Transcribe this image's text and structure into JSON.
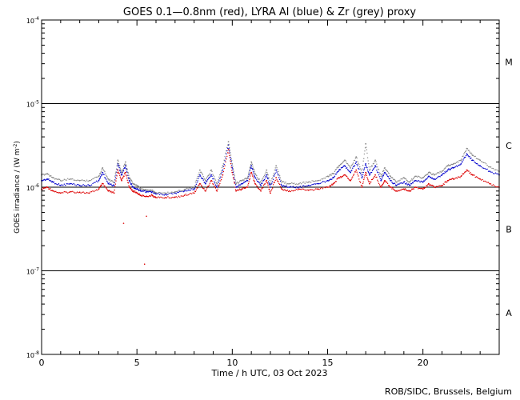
{
  "chart_data": {
    "type": "scatter",
    "title": "GOES 0.1—0.8nm (red), LYRA Al (blue) & Zr (grey) proxy",
    "xlabel": "Time / h UTC, 03 Oct 2023",
    "ylabel_prefix": "GOES irradiance / (W m",
    "ylabel_exp": "-2",
    "ylabel_suffix": ")",
    "credit": "ROB/SIDC, Brussels, Belgium",
    "x_range": [
      0,
      24
    ],
    "y_range": [
      1e-08,
      0.0001
    ],
    "y_scale": "log",
    "x_ticks": [
      0,
      5,
      10,
      15,
      20
    ],
    "x_tick_labels": [
      "0",
      "5",
      "10",
      "15",
      "20"
    ],
    "y_ticks": [
      {
        "base": "10",
        "exp": "-8"
      },
      {
        "base": "10",
        "exp": "-7"
      },
      {
        "base": "10",
        "exp": "-6"
      },
      {
        "base": "10",
        "exp": "-5"
      },
      {
        "base": "10",
        "exp": "-4"
      }
    ],
    "class_labels": [
      {
        "label": "A",
        "center": 3.16e-08
      },
      {
        "label": "B",
        "center": 3.16e-07
      },
      {
        "label": "C",
        "center": 3.16e-06
      },
      {
        "label": "M",
        "center": 3.16e-05
      }
    ],
    "reference_lines": [
      1e-07,
      1e-06,
      1e-05
    ],
    "series": [
      {
        "name": "GOES 0.1-0.8nm",
        "color": "#dd0000",
        "x": [
          0,
          0.3,
          0.6,
          1,
          1.5,
          2,
          2.5,
          3,
          3.2,
          3.5,
          3.8,
          4,
          4.2,
          4.4,
          4.6,
          4.8,
          5,
          5.2,
          5.5,
          5.8,
          6,
          6.5,
          7,
          7.5,
          8,
          8.3,
          8.6,
          8.9,
          9.2,
          9.5,
          9.8,
          10,
          10.2,
          10.5,
          10.8,
          11,
          11.2,
          11.5,
          11.8,
          12,
          12.3,
          12.6,
          13,
          13.5,
          14,
          14.5,
          15,
          15.3,
          15.6,
          15.9,
          16.2,
          16.5,
          16.8,
          17,
          17.2,
          17.5,
          17.8,
          18,
          18.3,
          18.6,
          19,
          19.3,
          19.6,
          20,
          20.3,
          20.6,
          21,
          21.3,
          21.6,
          22,
          22.3,
          22.6,
          23,
          23.5,
          24
        ],
        "y": [
          9.5e-07,
          1e-06,
          9e-07,
          8.5e-07,
          8.8e-07,
          8.7e-07,
          8.5e-07,
          9.5e-07,
          1.1e-06,
          9e-07,
          8.5e-07,
          1.6e-06,
          1.2e-06,
          1.5e-06,
          1e-06,
          9e-07,
          8.5e-07,
          8e-07,
          7.8e-07,
          8e-07,
          7.5e-07,
          7.5e-07,
          7.6e-07,
          8e-07,
          8.5e-07,
          1.1e-06,
          9e-07,
          1.2e-06,
          9e-07,
          1.4e-06,
          2.8e-06,
          1.5e-06,
          9e-07,
          9.5e-07,
          1e-06,
          1.5e-06,
          1.1e-06,
          9e-07,
          1.2e-06,
          8.5e-07,
          1.3e-06,
          9.5e-07,
          9e-07,
          9.5e-07,
          9.2e-07,
          9.5e-07,
          1e-06,
          1.1e-06,
          1.3e-06,
          1.4e-06,
          1.2e-06,
          1.6e-06,
          1e-06,
          1.5e-06,
          1.1e-06,
          1.4e-06,
          1e-06,
          1.2e-06,
          1e-06,
          9e-07,
          9.5e-07,
          9e-07,
          1e-06,
          9.5e-07,
          1.1e-06,
          1e-06,
          1.05e-06,
          1.2e-06,
          1.25e-06,
          1.35e-06,
          1.6e-06,
          1.4e-06,
          1.25e-06,
          1.1e-06,
          1e-06
        ]
      },
      {
        "name": "LYRA Al proxy",
        "color": "#0000cc",
        "x": [
          0,
          0.3,
          0.6,
          1,
          1.5,
          2,
          2.5,
          3,
          3.2,
          3.5,
          3.8,
          4,
          4.2,
          4.4,
          4.6,
          4.8,
          5,
          5.2,
          5.5,
          5.8,
          6,
          6.5,
          7,
          7.5,
          8,
          8.3,
          8.6,
          8.9,
          9.2,
          9.5,
          9.8,
          10,
          10.2,
          10.5,
          10.8,
          11,
          11.2,
          11.5,
          11.8,
          12,
          12.3,
          12.6,
          13,
          13.5,
          14,
          14.5,
          15,
          15.3,
          15.6,
          15.9,
          16.2,
          16.5,
          16.8,
          17,
          17.2,
          17.5,
          17.8,
          18,
          18.3,
          18.6,
          19,
          19.3,
          19.6,
          20,
          20.3,
          20.6,
          21,
          21.3,
          21.6,
          22,
          22.3,
          22.6,
          23,
          23.5,
          24
        ],
        "y": [
          1.2e-06,
          1.25e-06,
          1.15e-06,
          1.05e-06,
          1.1e-06,
          1.05e-06,
          1.05e-06,
          1.2e-06,
          1.5e-06,
          1.1e-06,
          1.05e-06,
          1.9e-06,
          1.4e-06,
          1.8e-06,
          1.2e-06,
          1e-06,
          9.5e-07,
          9e-07,
          8.8e-07,
          8.8e-07,
          8.3e-07,
          8.2e-07,
          8.5e-07,
          9e-07,
          9.5e-07,
          1.4e-06,
          1.1e-06,
          1.4e-06,
          1e-06,
          1.6e-06,
          3.2e-06,
          1.7e-06,
          1e-06,
          1.1e-06,
          1.2e-06,
          1.8e-06,
          1.3e-06,
          1.05e-06,
          1.4e-06,
          1e-06,
          1.6e-06,
          1.05e-06,
          1e-06,
          1e-06,
          1.05e-06,
          1.1e-06,
          1.2e-06,
          1.3e-06,
          1.6e-06,
          1.8e-06,
          1.5e-06,
          2e-06,
          1.3e-06,
          1.9e-06,
          1.4e-06,
          1.8e-06,
          1.2e-06,
          1.5e-06,
          1.2e-06,
          1.05e-06,
          1.15e-06,
          1.05e-06,
          1.2e-06,
          1.15e-06,
          1.35e-06,
          1.25e-06,
          1.4e-06,
          1.6e-06,
          1.7e-06,
          1.9e-06,
          2.5e-06,
          2.1e-06,
          1.8e-06,
          1.55e-06,
          1.4e-06
        ]
      },
      {
        "name": "LYRA Zr proxy",
        "color": "#888888",
        "x": [
          0,
          0.3,
          0.6,
          1,
          1.5,
          2,
          2.5,
          3,
          3.2,
          3.5,
          3.8,
          4,
          4.2,
          4.4,
          4.6,
          4.8,
          5,
          5.2,
          5.5,
          5.8,
          6,
          6.5,
          7,
          7.5,
          8,
          8.3,
          8.6,
          8.9,
          9.2,
          9.5,
          9.8,
          10,
          10.2,
          10.5,
          10.8,
          11,
          11.2,
          11.5,
          11.8,
          12,
          12.3,
          12.6,
          13,
          13.5,
          14,
          14.5,
          15,
          15.3,
          15.6,
          15.9,
          16.2,
          16.5,
          16.8,
          17,
          17.2,
          17.5,
          17.8,
          18,
          18.3,
          18.6,
          19,
          19.3,
          19.6,
          20,
          20.3,
          20.6,
          21,
          21.3,
          21.6,
          22,
          22.3,
          22.6,
          23,
          23.5,
          24
        ],
        "y": [
          1.4e-06,
          1.45e-06,
          1.3e-06,
          1.2e-06,
          1.25e-06,
          1.2e-06,
          1.2e-06,
          1.35e-06,
          1.7e-06,
          1.25e-06,
          1.15e-06,
          2.1e-06,
          1.5e-06,
          2e-06,
          1.3e-06,
          1.1e-06,
          1.05e-06,
          9.5e-07,
          9.2e-07,
          9.2e-07,
          8.6e-07,
          8.5e-07,
          8.8e-07,
          9.4e-07,
          1e-06,
          1.6e-06,
          1.2e-06,
          1.6e-06,
          1.1e-06,
          1.8e-06,
          3.5e-06,
          1.9e-06,
          1.1e-06,
          1.2e-06,
          1.3e-06,
          2e-06,
          1.45e-06,
          1.15e-06,
          1.6e-06,
          1.1e-06,
          1.8e-06,
          1.15e-06,
          1.1e-06,
          1.1e-06,
          1.15e-06,
          1.2e-06,
          1.35e-06,
          1.45e-06,
          1.8e-06,
          2.1e-06,
          1.7e-06,
          2.3e-06,
          1.5e-06,
          3.3e-06,
          1.6e-06,
          2.1e-06,
          1.35e-06,
          1.7e-06,
          1.35e-06,
          1.15e-06,
          1.3e-06,
          1.15e-06,
          1.35e-06,
          1.3e-06,
          1.5e-06,
          1.4e-06,
          1.55e-06,
          1.8e-06,
          1.9e-06,
          2.1e-06,
          2.9e-06,
          2.4e-06,
          2.1e-06,
          1.75e-06,
          1.55e-06
        ]
      }
    ],
    "outliers": {
      "color": "#dd0000",
      "x": [
        4.3,
        5.4,
        5.5
      ],
      "y": [
        3.7e-07,
        1.2e-07,
        4.5e-07
      ]
    }
  }
}
